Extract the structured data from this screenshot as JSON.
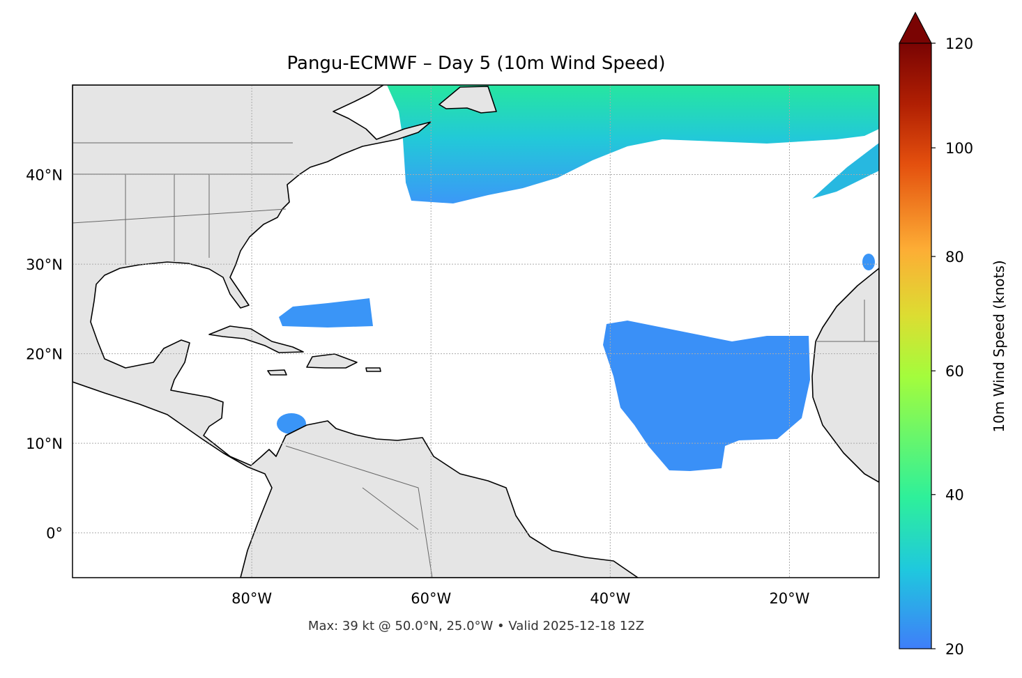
{
  "chart_data": {
    "type": "map",
    "title": "Pangu-ECMWF – Day 5 (10m Wind Speed)",
    "annotation": "Max: 39 kt @ 50.0°N, 25.0°W • Valid 2025-12-18 12Z",
    "xlim": [
      -100,
      -10
    ],
    "ylim": [
      -5,
      50
    ],
    "xticks": [
      {
        "value": -80,
        "label": "80°W"
      },
      {
        "value": -60,
        "label": "60°W"
      },
      {
        "value": -40,
        "label": "40°W"
      },
      {
        "value": -20,
        "label": "20°W"
      }
    ],
    "yticks": [
      {
        "value": 0,
        "label": "0°"
      },
      {
        "value": 10,
        "label": "10°N"
      },
      {
        "value": 20,
        "label": "20°N"
      },
      {
        "value": 30,
        "label": "30°N"
      },
      {
        "value": 40,
        "label": "40°N"
      }
    ],
    "grid": true,
    "colorbar": {
      "label": "10m Wind Speed (knots)",
      "lim": [
        20,
        120
      ],
      "ticks": [
        20,
        40,
        60,
        80,
        100,
        120
      ],
      "extend": "max",
      "norm": "power",
      "gamma": 0.85
    }
  }
}
